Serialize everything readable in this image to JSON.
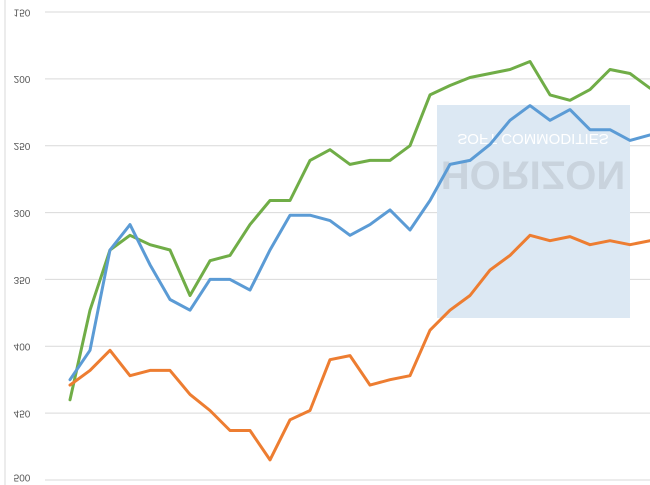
{
  "chart_data": {
    "type": "line",
    "watermark": [
      "SOFT COMMODITIES",
      "HORIZON"
    ],
    "ylim": [
      150,
      500
    ],
    "yreverse": true,
    "flipped_labels": true,
    "yticks": [
      150,
      200,
      250,
      300,
      350,
      400,
      450,
      500
    ],
    "grid": true,
    "series": [
      {
        "color": "#70ad47",
        "values": [
          440,
          373,
          328,
          317,
          324,
          328,
          362,
          336,
          332,
          309,
          291,
          291,
          261,
          253,
          264,
          261,
          261,
          250,
          212,
          205,
          199,
          196,
          193,
          187,
          212,
          216,
          208,
          193,
          196,
          207
        ]
      },
      {
        "color": "#5b9bd5",
        "values": [
          425,
          403,
          328,
          309,
          339,
          365,
          373,
          350,
          350,
          358,
          328,
          302,
          302,
          306,
          317,
          309,
          298,
          313,
          291,
          264,
          261,
          249,
          231,
          220,
          231,
          223,
          238,
          238,
          246,
          242
        ]
      },
      {
        "color": "#ed7d31",
        "values": [
          429,
          418,
          403,
          422,
          418,
          418,
          436,
          448,
          463,
          463,
          485,
          455,
          448,
          410,
          407,
          429,
          425,
          422,
          388,
          373,
          362,
          343,
          332,
          317,
          321,
          318,
          324,
          321,
          324,
          321
        ]
      }
    ]
  }
}
